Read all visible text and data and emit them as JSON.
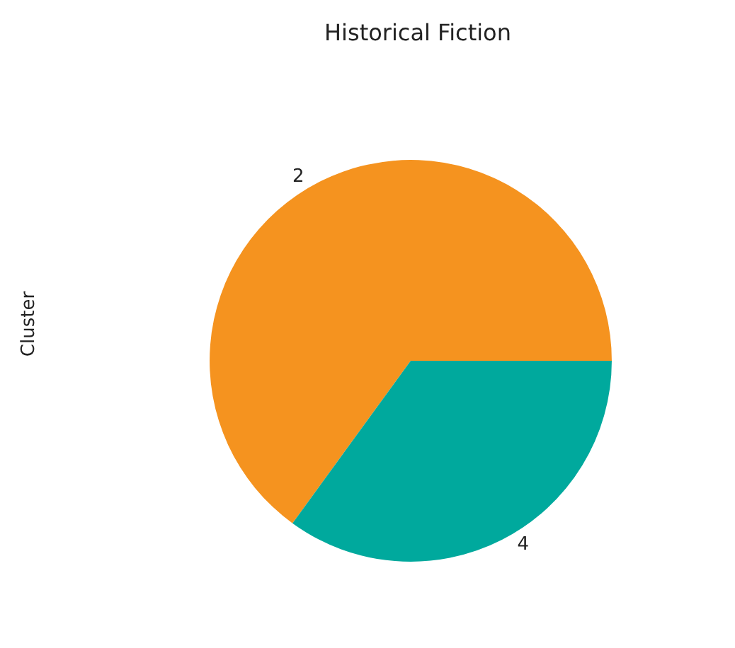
{
  "chart_data": {
    "type": "pie",
    "title": "Historical Fiction",
    "ylabel": "Cluster",
    "categories": [
      "2",
      "4"
    ],
    "values": [
      65,
      35
    ],
    "colors": [
      "#f5931f",
      "#00a99d"
    ]
  }
}
